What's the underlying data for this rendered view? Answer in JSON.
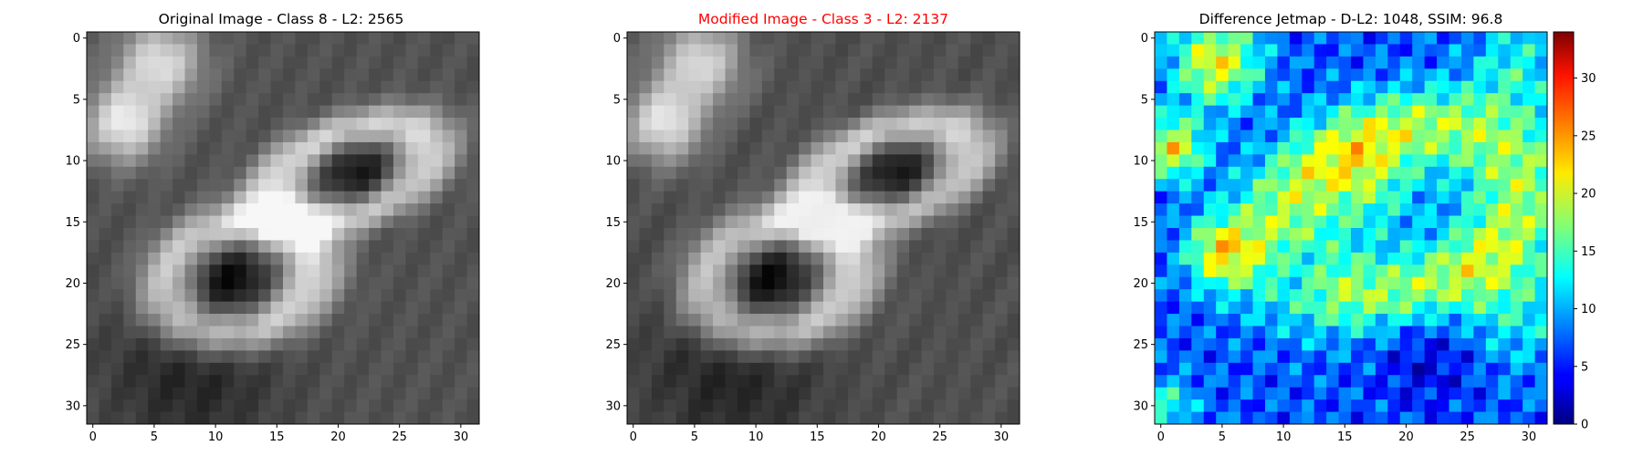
{
  "figure": {
    "title_colors": [
      "#000000",
      "#ff0000",
      "#000000"
    ]
  },
  "chart_data": [
    {
      "type": "heatmap",
      "title": "Original Image - Class 8 - L2: 2565",
      "colormap": "gray",
      "xlim": [
        -0.5,
        31.5
      ],
      "ylim": [
        31.5,
        -0.5
      ],
      "x_ticks": [
        0,
        5,
        10,
        15,
        20,
        25,
        30
      ],
      "y_ticks": [
        0,
        5,
        10,
        15,
        20,
        25,
        30
      ],
      "grid_size": 32,
      "grid": false
    },
    {
      "type": "heatmap",
      "title": "Modified Image - Class 3 - L2: 2137",
      "colormap": "gray",
      "xlim": [
        -0.5,
        31.5
      ],
      "ylim": [
        31.5,
        -0.5
      ],
      "x_ticks": [
        0,
        5,
        10,
        15,
        20,
        25,
        30
      ],
      "y_ticks": [
        0,
        5,
        10,
        15,
        20,
        25,
        30
      ],
      "grid_size": 32,
      "grid": false
    },
    {
      "type": "heatmap",
      "title": "Difference Jetmap - D-L2: 1048, SSIM: 96.8",
      "colormap": "jet",
      "xlim": [
        -0.5,
        31.5
      ],
      "ylim": [
        31.5,
        -0.5
      ],
      "x_ticks": [
        0,
        5,
        10,
        15,
        20,
        25,
        30
      ],
      "y_ticks": [
        0,
        5,
        10,
        15,
        20,
        25,
        30
      ],
      "grid_size": 32,
      "grid": false,
      "colorbar": {
        "range": [
          0,
          34
        ],
        "ticks": [
          0,
          5,
          10,
          15,
          20,
          25,
          30
        ]
      }
    }
  ]
}
